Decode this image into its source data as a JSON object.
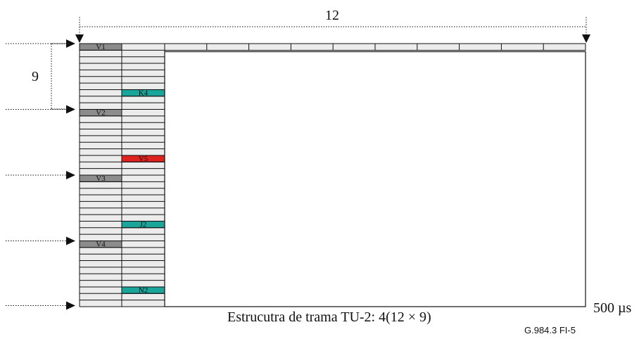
{
  "top_dimension": "12",
  "side_dimension": "9",
  "time_label": "500 µs",
  "caption": "Estrucutra de trama TU-2: 4(12 × 9)",
  "figure_id": "G.984.3  FI-5",
  "colors": {
    "v_byte": "#8c8c8c",
    "k4_j2_n2": "#1aa59b",
    "v5": "#e0231f",
    "grid_fill": "#ececec",
    "line": "#111111"
  },
  "column1_rows": 40,
  "column2_rows": 40,
  "top_row_cells": 10,
  "cells": [
    {
      "col": 1,
      "row": 0,
      "label": "V1",
      "kind": "v_byte"
    },
    {
      "col": 2,
      "row": 7,
      "label": "K4",
      "kind": "k4_j2_n2"
    },
    {
      "col": 1,
      "row": 10,
      "label": "V2",
      "kind": "v_byte"
    },
    {
      "col": 2,
      "row": 17,
      "label": "V5",
      "kind": "v5"
    },
    {
      "col": 1,
      "row": 20,
      "label": "V3",
      "kind": "v_byte"
    },
    {
      "col": 2,
      "row": 27,
      "label": "J2",
      "kind": "k4_j2_n2"
    },
    {
      "col": 1,
      "row": 30,
      "label": "V4",
      "kind": "v_byte"
    },
    {
      "col": 2,
      "row": 37,
      "label": "N2",
      "kind": "k4_j2_n2"
    }
  ],
  "arrow_rows": [
    0,
    10,
    20,
    30,
    40
  ]
}
